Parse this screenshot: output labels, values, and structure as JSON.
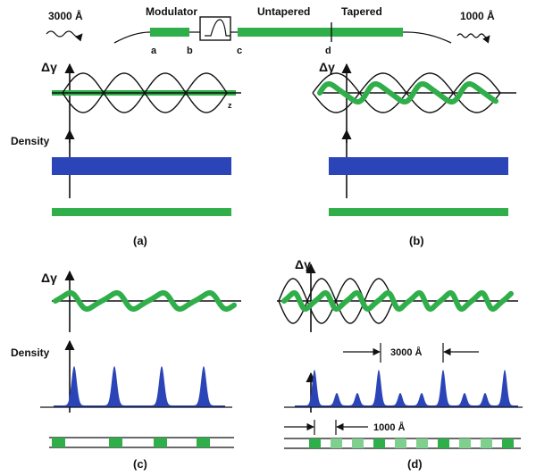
{
  "colors": {
    "green": "#2fae4a",
    "green_light": "#7fd08f",
    "blue": "#2b45b8",
    "blue_dark": "#1f34a0",
    "ink": "#111111"
  },
  "schematic": {
    "input_wavelength": "3000 Å",
    "output_wavelength": "1000 Å",
    "modulator_label": "Modulator",
    "untapered_label": "Untapered",
    "tapered_label": "Tapered",
    "point_labels": [
      "a",
      "b",
      "c",
      "d"
    ]
  },
  "panels": {
    "a": {
      "label": "(a)",
      "y_axis": "Δγ",
      "z_axis": "z",
      "density_label": "Density"
    },
    "b": {
      "label": "(b)",
      "y_axis": "Δγ"
    },
    "c": {
      "label": "(c)",
      "y_axis": "Δγ",
      "density_label": "Density"
    },
    "d": {
      "label": "(d)",
      "y_axis": "Δγ",
      "spacing_3000": "3000 Å",
      "spacing_1000": "1000 Å"
    }
  }
}
